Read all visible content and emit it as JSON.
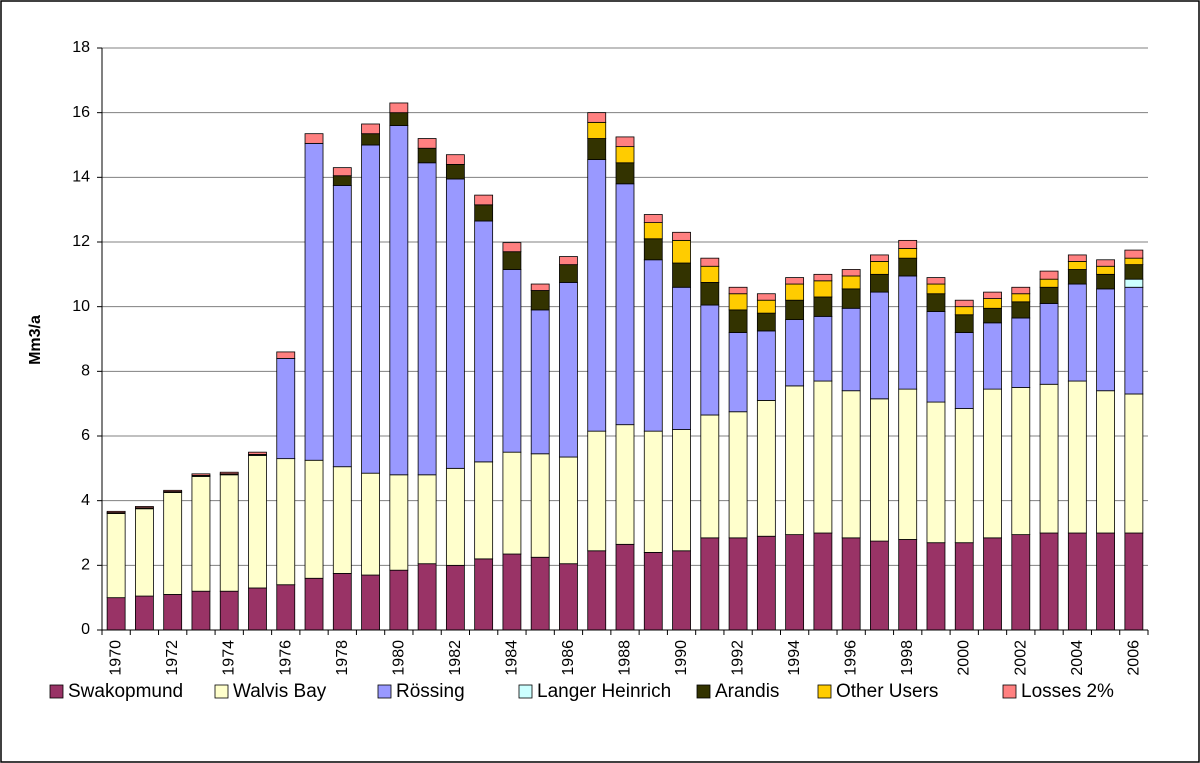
{
  "chart_data": {
    "type": "stacked_bar",
    "y_label": "Mm3/a",
    "categories": [
      "1970",
      null,
      "1972",
      null,
      "1974",
      null,
      "1976",
      null,
      "1978",
      null,
      "1980",
      null,
      "1982",
      null,
      "1984",
      null,
      "1986",
      null,
      "1988",
      null,
      "1990",
      null,
      "1992",
      null,
      "1994",
      null,
      "1996",
      null,
      "1998",
      null,
      "2000",
      null,
      "2002",
      null,
      "2004",
      null,
      "2006"
    ],
    "series": [
      {
        "name": "Swakopmund",
        "color": "#993366",
        "values": [
          1.0,
          1.05,
          1.1,
          1.2,
          1.2,
          1.3,
          1.4,
          1.6,
          1.75,
          1.7,
          1.85,
          2.05,
          2.0,
          2.2,
          2.35,
          2.25,
          2.05,
          2.45,
          2.65,
          2.4,
          2.45,
          2.85,
          2.85,
          2.9,
          2.95,
          3.0,
          2.85,
          2.75,
          2.8,
          2.7,
          2.7,
          2.85,
          2.95,
          3.0,
          3.0,
          3.0,
          3.0
        ]
      },
      {
        "name": "Walvis Bay",
        "color": "#FFFFCC",
        "values": [
          2.6,
          2.7,
          3.15,
          3.55,
          3.6,
          4.1,
          3.9,
          3.65,
          3.3,
          3.15,
          2.95,
          2.75,
          3.0,
          3.0,
          3.15,
          3.2,
          3.3,
          3.7,
          3.7,
          3.75,
          3.75,
          3.8,
          3.9,
          4.2,
          4.6,
          4.7,
          4.55,
          4.4,
          4.65,
          4.35,
          4.15,
          4.6,
          4.55,
          4.6,
          4.7,
          4.4,
          4.3
        ]
      },
      {
        "name": "Rössing",
        "color": "#9999FF",
        "values": [
          0,
          0,
          0,
          0,
          0,
          0,
          3.1,
          9.8,
          8.7,
          10.15,
          10.8,
          9.65,
          8.95,
          7.45,
          5.65,
          4.45,
          5.4,
          8.4,
          7.45,
          5.3,
          4.4,
          3.4,
          2.45,
          2.15,
          2.05,
          2.0,
          2.55,
          3.3,
          3.5,
          2.8,
          2.35,
          2.05,
          2.15,
          2.5,
          3.0,
          3.15,
          3.3
        ]
      },
      {
        "name": "Langer Heinrich",
        "color": "#CCFFFF",
        "values": [
          0,
          0,
          0,
          0,
          0,
          0,
          0,
          0,
          0,
          0,
          0,
          0,
          0,
          0,
          0,
          0,
          0,
          0,
          0,
          0,
          0,
          0,
          0,
          0,
          0,
          0,
          0,
          0,
          0,
          0,
          0,
          0,
          0,
          0,
          0,
          0,
          0.25
        ]
      },
      {
        "name": "Arandis",
        "color": "#333300",
        "values": [
          0.03,
          0.03,
          0.03,
          0.03,
          0.03,
          0.03,
          0,
          0,
          0.3,
          0.35,
          0.4,
          0.45,
          0.45,
          0.5,
          0.55,
          0.6,
          0.55,
          0.65,
          0.65,
          0.65,
          0.75,
          0.7,
          0.7,
          0.55,
          0.6,
          0.6,
          0.6,
          0.55,
          0.55,
          0.55,
          0.55,
          0.45,
          0.5,
          0.5,
          0.45,
          0.45,
          0.45
        ]
      },
      {
        "name": "Other Users",
        "color": "#FFCC00",
        "values": [
          0,
          0,
          0,
          0,
          0,
          0,
          0,
          0,
          0,
          0,
          0,
          0,
          0,
          0,
          0,
          0,
          0,
          0.5,
          0.5,
          0.5,
          0.7,
          0.5,
          0.5,
          0.4,
          0.5,
          0.5,
          0.4,
          0.4,
          0.3,
          0.3,
          0.25,
          0.3,
          0.25,
          0.25,
          0.25,
          0.25,
          0.2
        ]
      },
      {
        "name": "Losses 2%",
        "color": "#FF8080",
        "values": [
          0.04,
          0.04,
          0.04,
          0.05,
          0.05,
          0.07,
          0.2,
          0.3,
          0.25,
          0.3,
          0.3,
          0.3,
          0.3,
          0.3,
          0.28,
          0.2,
          0.25,
          0.3,
          0.3,
          0.25,
          0.25,
          0.25,
          0.2,
          0.2,
          0.2,
          0.2,
          0.2,
          0.2,
          0.25,
          0.2,
          0.2,
          0.2,
          0.2,
          0.25,
          0.2,
          0.2,
          0.25
        ]
      }
    ],
    "ylim": [
      0,
      18
    ],
    "yticks": [
      0,
      2,
      4,
      6,
      8,
      10,
      12,
      14,
      16,
      18
    ],
    "grid": true,
    "legend": "bottom"
  }
}
